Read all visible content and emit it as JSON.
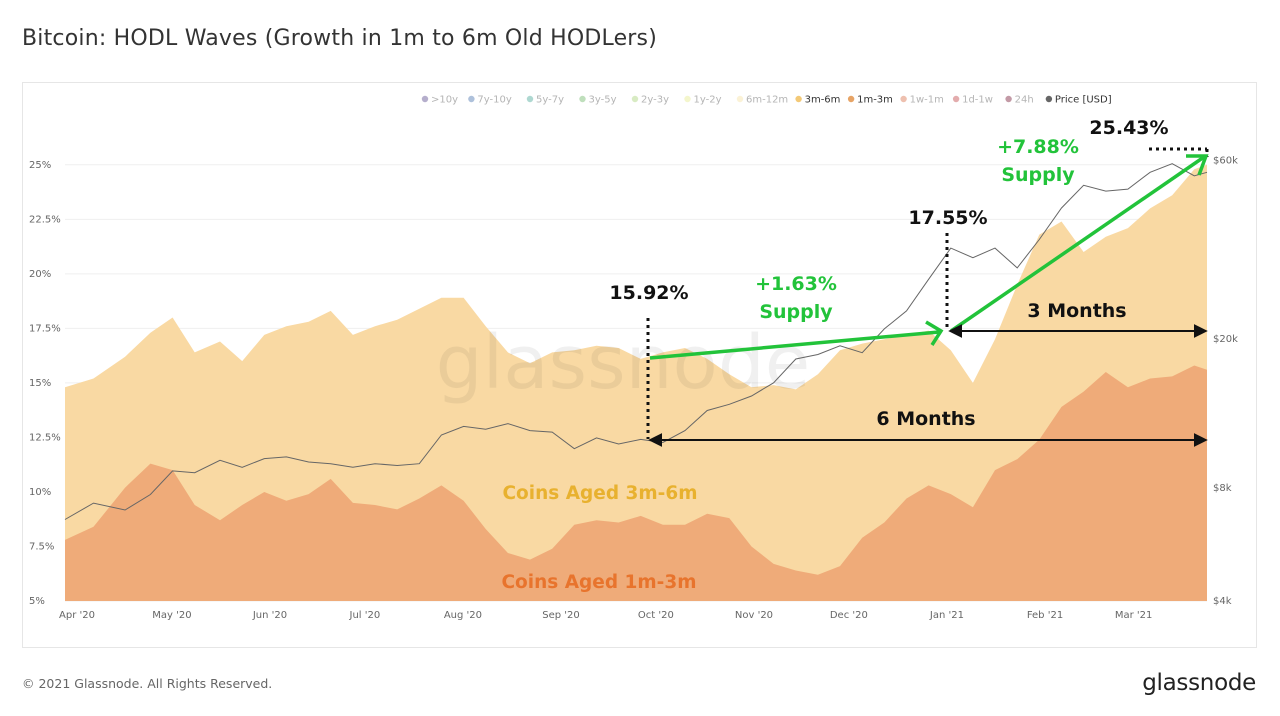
{
  "title": "Bitcoin: HODL Waves (Growth in 1m to 6m Old HODLers)",
  "footer": {
    "copyright": "© 2021 Glassnode. All Rights Reserved.",
    "logo": "glassnode"
  },
  "watermark": "glassnode",
  "chart_data": {
    "type": "area",
    "stacked": true,
    "x_ticks": [
      "Apr '20",
      "May '20",
      "Jun '20",
      "Jul '20",
      "Aug '20",
      "Sep '20",
      "Oct '20",
      "Nov '20",
      "Dec '20",
      "Jan '21",
      "Feb '21",
      "Mar '21"
    ],
    "x_range": [
      "2020-04-01",
      "2021-03-28"
    ],
    "y_left": {
      "ticks": [
        "5%",
        "7.5%",
        "10%",
        "12.5%",
        "15%",
        "17.5%",
        "20%",
        "22.5%",
        "25%"
      ],
      "range": [
        5,
        26
      ]
    },
    "y_right": {
      "ticks": [
        "$4k",
        "$8k",
        "$20k",
        "$60k"
      ],
      "scale": "log"
    },
    "grid": true,
    "legend_position": "top-right",
    "legend": [
      {
        "label": ">10y",
        "color": "#5b4c8f",
        "active": false
      },
      {
        "label": "7y-10y",
        "color": "#4c75b0",
        "active": false
      },
      {
        "label": "5y-7y",
        "color": "#4ba89a",
        "active": false
      },
      {
        "label": "3y-5y",
        "color": "#72b76a",
        "active": false
      },
      {
        "label": "2y-3y",
        "color": "#a8d37a",
        "active": false
      },
      {
        "label": "1y-2y",
        "color": "#e6ec8e",
        "active": false
      },
      {
        "label": "6m-12m",
        "color": "#f6e3a3",
        "active": false
      },
      {
        "label": "3m-6m",
        "color": "#f3c977",
        "active": true
      },
      {
        "label": "1m-3m",
        "color": "#e7a466",
        "active": true
      },
      {
        "label": "1w-1m",
        "color": "#d9744e",
        "active": false
      },
      {
        "label": "1d-1w",
        "color": "#c2474a",
        "active": false
      },
      {
        "label": "24h",
        "color": "#7a1f3a",
        "active": false
      },
      {
        "label": "Price [USD]",
        "color": "#666666",
        "active": true
      }
    ],
    "series": [
      {
        "name": "1m-3m",
        "color": "#efab79",
        "x": [
          "2020-04-01",
          "2020-04-10",
          "2020-04-20",
          "2020-04-28",
          "2020-05-05",
          "2020-05-12",
          "2020-05-20",
          "2020-05-27",
          "2020-06-03",
          "2020-06-10",
          "2020-06-17",
          "2020-06-24",
          "2020-07-01",
          "2020-07-08",
          "2020-07-15",
          "2020-07-22",
          "2020-07-29",
          "2020-08-05",
          "2020-08-12",
          "2020-08-19",
          "2020-08-26",
          "2020-09-02",
          "2020-09-09",
          "2020-09-16",
          "2020-09-23",
          "2020-09-30",
          "2020-10-07",
          "2020-10-14",
          "2020-10-21",
          "2020-10-28",
          "2020-11-04",
          "2020-11-11",
          "2020-11-18",
          "2020-11-25",
          "2020-12-02",
          "2020-12-09",
          "2020-12-16",
          "2020-12-23",
          "2020-12-30",
          "2021-01-06",
          "2021-01-13",
          "2021-01-20",
          "2021-01-27",
          "2021-02-03",
          "2021-02-10",
          "2021-02-17",
          "2021-02-24",
          "2021-03-03",
          "2021-03-10",
          "2021-03-17",
          "2021-03-24",
          "2021-03-28"
        ],
        "values": [
          7.8,
          8.4,
          10.2,
          11.3,
          11.0,
          9.4,
          8.7,
          9.4,
          10.0,
          9.6,
          9.9,
          10.6,
          9.5,
          9.4,
          9.2,
          9.7,
          10.3,
          9.6,
          8.3,
          7.2,
          6.9,
          7.4,
          8.5,
          8.7,
          8.6,
          8.9,
          8.5,
          8.5,
          9.0,
          8.8,
          7.5,
          6.7,
          6.4,
          6.2,
          6.6,
          7.9,
          8.6,
          9.7,
          10.3,
          9.9,
          9.3,
          11.0,
          11.5,
          12.4,
          13.9,
          14.6,
          15.5,
          14.8,
          15.2,
          15.3,
          15.8,
          15.6
        ]
      },
      {
        "name": "3m-6m",
        "color": "#f9d9a3",
        "x": [
          "2020-04-01",
          "2020-04-10",
          "2020-04-20",
          "2020-04-28",
          "2020-05-05",
          "2020-05-12",
          "2020-05-20",
          "2020-05-27",
          "2020-06-03",
          "2020-06-10",
          "2020-06-17",
          "2020-06-24",
          "2020-07-01",
          "2020-07-08",
          "2020-07-15",
          "2020-07-22",
          "2020-07-29",
          "2020-08-05",
          "2020-08-12",
          "2020-08-19",
          "2020-08-26",
          "2020-09-02",
          "2020-09-09",
          "2020-09-16",
          "2020-09-23",
          "2020-09-30",
          "2020-10-07",
          "2020-10-14",
          "2020-10-21",
          "2020-10-28",
          "2020-11-04",
          "2020-11-11",
          "2020-11-18",
          "2020-11-25",
          "2020-12-02",
          "2020-12-09",
          "2020-12-16",
          "2020-12-23",
          "2020-12-30",
          "2021-01-06",
          "2021-01-13",
          "2021-01-20",
          "2021-01-27",
          "2021-02-03",
          "2021-02-10",
          "2021-02-17",
          "2021-02-24",
          "2021-03-03",
          "2021-03-10",
          "2021-03-17",
          "2021-03-24",
          "2021-03-28"
        ],
        "values": [
          14.8,
          15.2,
          16.2,
          17.3,
          18.0,
          16.4,
          16.9,
          16.0,
          17.2,
          17.6,
          17.8,
          18.3,
          17.2,
          17.6,
          17.9,
          18.4,
          18.9,
          18.9,
          17.6,
          16.4,
          15.9,
          16.4,
          16.5,
          16.7,
          16.6,
          16.1,
          16.4,
          16.6,
          16.1,
          15.4,
          14.8,
          14.9,
          14.7,
          15.4,
          16.5,
          16.8,
          17.0,
          17.2,
          17.4,
          16.5,
          15.0,
          17.0,
          19.5,
          21.8,
          22.4,
          21.0,
          21.7,
          22.1,
          23.0,
          23.6,
          24.8,
          25.0
        ]
      },
      {
        "name": "Price [USD]",
        "unit": "USD",
        "color": "#666666",
        "x": [
          "2020-04-01",
          "2020-04-10",
          "2020-04-20",
          "2020-04-28",
          "2020-05-05",
          "2020-05-12",
          "2020-05-20",
          "2020-05-27",
          "2020-06-03",
          "2020-06-10",
          "2020-06-17",
          "2020-06-24",
          "2020-07-01",
          "2020-07-08",
          "2020-07-15",
          "2020-07-22",
          "2020-07-29",
          "2020-08-05",
          "2020-08-12",
          "2020-08-19",
          "2020-08-26",
          "2020-09-02",
          "2020-09-09",
          "2020-09-16",
          "2020-09-23",
          "2020-09-30",
          "2020-10-07",
          "2020-10-14",
          "2020-10-21",
          "2020-10-28",
          "2020-11-04",
          "2020-11-11",
          "2020-11-18",
          "2020-11-25",
          "2020-12-02",
          "2020-12-09",
          "2020-12-16",
          "2020-12-23",
          "2020-12-30",
          "2021-01-06",
          "2021-01-13",
          "2021-01-20",
          "2021-01-27",
          "2021-02-03",
          "2021-02-10",
          "2021-02-17",
          "2021-02-24",
          "2021-03-03",
          "2021-03-10",
          "2021-03-17",
          "2021-03-24",
          "2021-03-28"
        ],
        "values": [
          6600,
          7300,
          7000,
          7700,
          8900,
          8800,
          9500,
          9100,
          9600,
          9700,
          9400,
          9300,
          9100,
          9300,
          9200,
          9300,
          11100,
          11700,
          11500,
          11900,
          11400,
          11300,
          10200,
          10900,
          10500,
          10800,
          10600,
          11400,
          12900,
          13400,
          14100,
          15300,
          17700,
          18200,
          19200,
          18400,
          21300,
          23800,
          28900,
          35000,
          33000,
          35000,
          31000,
          36900,
          44800,
          51500,
          49700,
          50300,
          55800,
          58800,
          54600,
          55800
        ]
      }
    ],
    "annotations": [
      {
        "text": "15.92%",
        "color": "#111111"
      },
      {
        "text": "17.55%",
        "color": "#111111"
      },
      {
        "text": "25.43%",
        "color": "#111111"
      },
      {
        "text": "+1.63%",
        "text2": "Supply",
        "color": "#22c33a"
      },
      {
        "text": "+7.88%",
        "text2": "Supply",
        "color": "#22c33a"
      },
      {
        "text": "3 Months",
        "color": "#111111"
      },
      {
        "text": "6 Months",
        "color": "#111111"
      },
      {
        "text": "Coins Aged 3m-6m",
        "color": "#e8b12f"
      },
      {
        "text": "Coins Aged 1m-3m",
        "color": "#e8742d"
      }
    ]
  }
}
